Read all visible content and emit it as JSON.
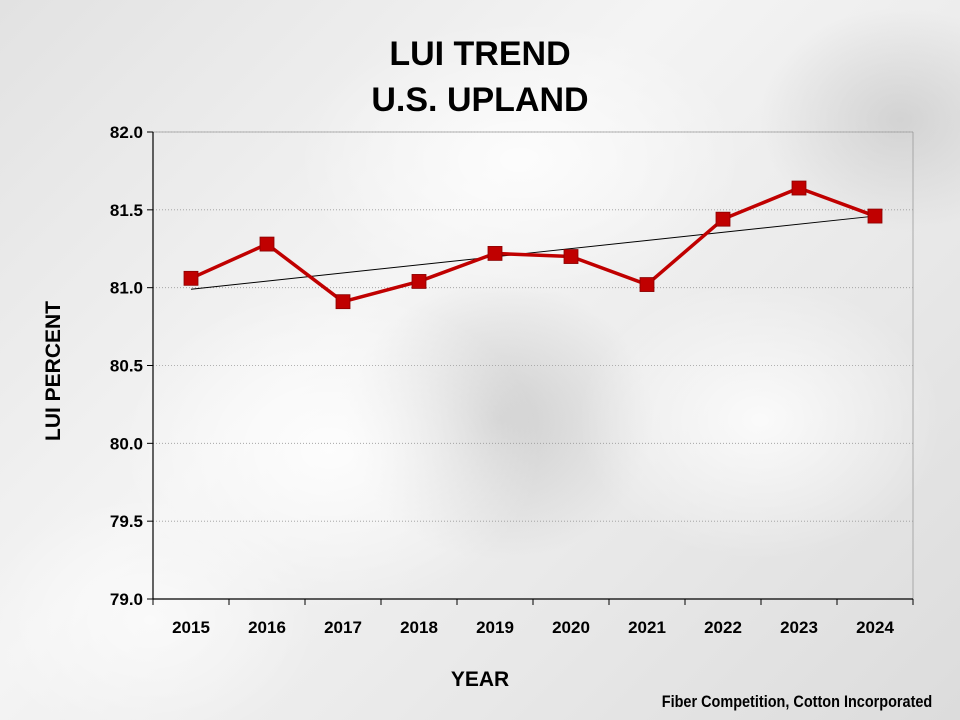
{
  "chart_data": {
    "type": "line",
    "title_lines": [
      "LUI TREND",
      "U.S. UPLAND"
    ],
    "xlabel": "YEAR",
    "ylabel": "LUI PERCENT",
    "categories": [
      "2015",
      "2016",
      "2017",
      "2018",
      "2019",
      "2020",
      "2021",
      "2022",
      "2023",
      "2024"
    ],
    "series": [
      {
        "name": "LUI",
        "values": [
          81.06,
          81.28,
          80.91,
          81.04,
          81.22,
          81.2,
          81.02,
          81.44,
          81.64,
          81.46
        ],
        "color": "#c00000"
      }
    ],
    "trendline": {
      "start": 80.99,
      "end": 81.46,
      "color": "#000000"
    },
    "ylim": [
      79.0,
      82.0
    ],
    "yticks": [
      "79.0",
      "79.5",
      "80.0",
      "80.5",
      "81.0",
      "81.5",
      "82.0"
    ],
    "grid": true
  },
  "footer": {
    "credit": "Fiber Competition, Cotton Incorporated"
  }
}
